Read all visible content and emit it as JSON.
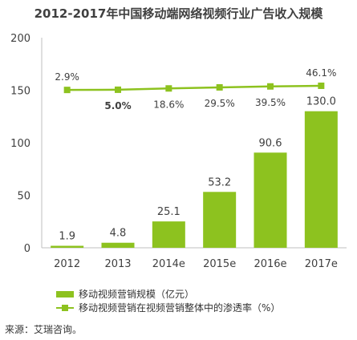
{
  "chart_data": {
    "type": "bar+line",
    "title": "2012-2017年中国移动端网络视频行业广告收入规模",
    "categories": [
      "2012",
      "2013",
      "2014e",
      "2015e",
      "2016e",
      "2017e"
    ],
    "series": [
      {
        "name": "移动视频营销规模（亿元）",
        "type": "bar",
        "values": [
          1.9,
          4.8,
          25.1,
          53.2,
          90.6,
          130.0
        ],
        "labels": [
          "1.9",
          "4.8",
          "25.1",
          "53.2",
          "90.6",
          "130.0"
        ],
        "color": "#8dc21f"
      },
      {
        "name": "移动视频营销在视频营销整体中的渗透率（%）",
        "type": "line",
        "values": [
          2.9,
          5.0,
          18.6,
          29.5,
          39.5,
          46.1
        ],
        "labels": [
          "2.9%",
          "5.0%",
          "18.6%",
          "29.5%",
          "39.5%",
          "46.1%"
        ],
        "color": "#8dc21f"
      }
    ],
    "y_ticks": [
      "0",
      "50",
      "100",
      "150",
      "200"
    ],
    "ylim": [
      0,
      200
    ],
    "grid": false,
    "legend_position": "bottom"
  },
  "source": "来源：艾瑞咨询。"
}
